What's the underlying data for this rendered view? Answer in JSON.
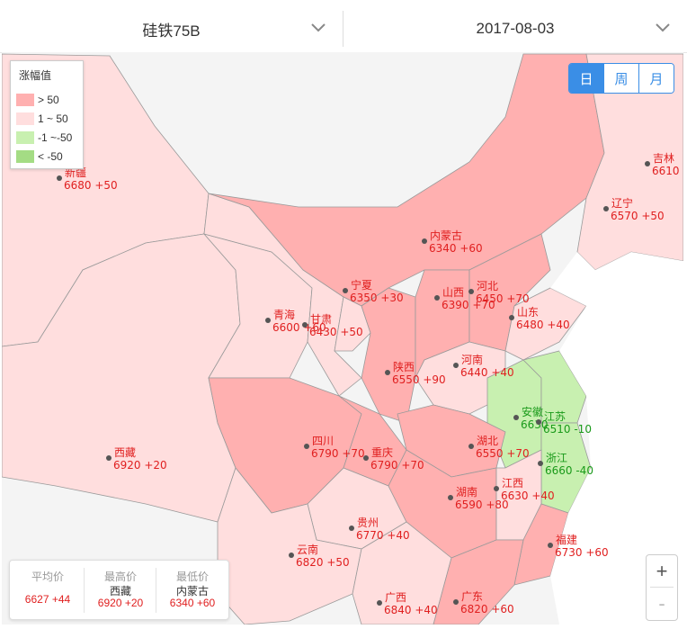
{
  "selectors": {
    "product": "硅铁75B",
    "date": "2017-08-03"
  },
  "period_buttons": [
    {
      "label": "日",
      "active": true
    },
    {
      "label": "周",
      "active": false
    },
    {
      "label": "月",
      "active": false
    }
  ],
  "legend": {
    "title": "涨幅值",
    "items": [
      {
        "label": "> 50",
        "color": "#ffb0b0"
      },
      {
        "label": "1 ~ 50",
        "color": "#ffdede"
      },
      {
        "label": "-1 ~-50",
        "color": "#c8f0b0"
      },
      {
        "label": "< -50",
        "color": "#a4dc84"
      }
    ]
  },
  "colors": {
    "up": "#e02020",
    "down": "#1a9a1a",
    "accent": "#3a8ee6"
  },
  "provinces": [
    {
      "name": "新疆",
      "value": "6680 +50",
      "trend": "up"
    },
    {
      "name": "吉林",
      "value": "6610",
      "trend": "up"
    },
    {
      "name": "辽宁",
      "value": "6570 +50",
      "trend": "up"
    },
    {
      "name": "内蒙古",
      "value": "6340 +60",
      "trend": "up"
    },
    {
      "name": "宁夏",
      "value": "6350 +30",
      "trend": "up"
    },
    {
      "name": "河北",
      "value": "6450 +70",
      "trend": "up"
    },
    {
      "name": "山西",
      "value": "6390 +70",
      "trend": "up"
    },
    {
      "name": "青海",
      "value": "6600 +60",
      "trend": "up"
    },
    {
      "name": "甘肃",
      "value": "6430 +50",
      "trend": "up"
    },
    {
      "name": "山东",
      "value": "6480 +40",
      "trend": "up"
    },
    {
      "name": "陕西",
      "value": "6550 +90",
      "trend": "up"
    },
    {
      "name": "河南",
      "value": "6440 +40",
      "trend": "up"
    },
    {
      "name": "安徽",
      "value": "6630",
      "trend": "down"
    },
    {
      "name": "江苏",
      "value": "6510 -10",
      "trend": "down"
    },
    {
      "name": "西藏",
      "value": "6920 +20",
      "trend": "up"
    },
    {
      "name": "四川",
      "value": "6790 +70",
      "trend": "up"
    },
    {
      "name": "重庆",
      "value": "6790 +70",
      "trend": "up"
    },
    {
      "name": "湖北",
      "value": "6550 +70",
      "trend": "up"
    },
    {
      "name": "浙江",
      "value": "6660 -40",
      "trend": "down"
    },
    {
      "name": "江西",
      "value": "6630 +40",
      "trend": "up"
    },
    {
      "name": "湖南",
      "value": "6590 +80",
      "trend": "up"
    },
    {
      "name": "贵州",
      "value": "6770 +40",
      "trend": "up"
    },
    {
      "name": "福建",
      "value": "6730 +60",
      "trend": "up"
    },
    {
      "name": "云南",
      "value": "6820 +50",
      "trend": "up"
    },
    {
      "name": "广西",
      "value": "6840 +40",
      "trend": "up"
    },
    {
      "name": "广东",
      "value": "6820 +60",
      "trend": "up"
    }
  ],
  "stats": {
    "avg": {
      "label": "平均价",
      "value": "6627 +44"
    },
    "max": {
      "label": "最高价",
      "region": "西藏",
      "value": "6920 +20"
    },
    "min": {
      "label": "最低价",
      "region": "内蒙古",
      "value": "6340 +60"
    }
  },
  "zoom": {
    "in": "+",
    "out": "-"
  }
}
